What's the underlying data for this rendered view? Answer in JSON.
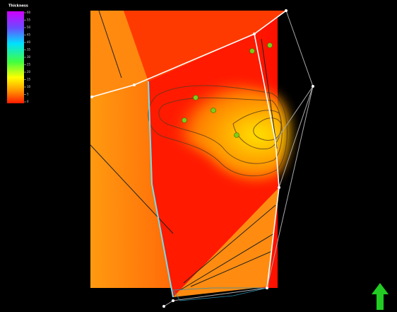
{
  "legend": {
    "title": "Thickness",
    "ticks": [
      "60",
      "55",
      "50",
      "45",
      "40",
      "35",
      "30",
      "25",
      "20",
      "15",
      "10",
      "5",
      "0"
    ]
  }
}
